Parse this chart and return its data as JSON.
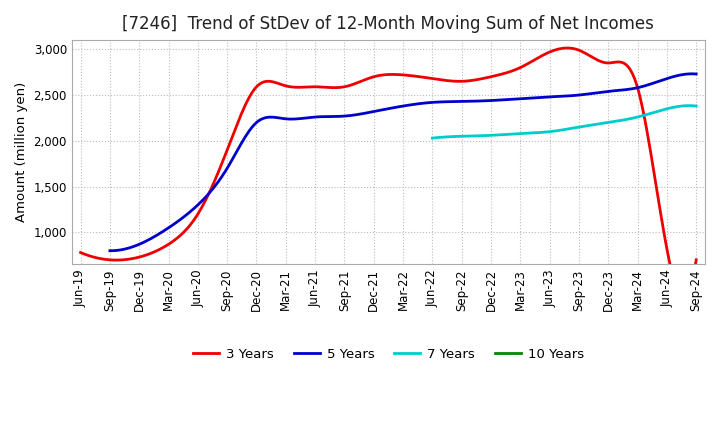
{
  "title": "[7246]  Trend of StDev of 12-Month Moving Sum of Net Incomes",
  "ylabel": "Amount (million yen)",
  "title_fontsize": 12,
  "label_fontsize": 9.5,
  "tick_fontsize": 8.5,
  "ylim": [
    650,
    3100
  ],
  "yticks": [
    1000,
    1500,
    2000,
    2500,
    3000
  ],
  "background_color": "#ffffff",
  "grid_color": "#bbbbbb",
  "x_labels": [
    "Jun-19",
    "Sep-19",
    "Dec-19",
    "Mar-20",
    "Jun-20",
    "Sep-20",
    "Dec-20",
    "Mar-21",
    "Jun-21",
    "Sep-21",
    "Dec-21",
    "Mar-22",
    "Jun-22",
    "Sep-22",
    "Dec-22",
    "Mar-23",
    "Jun-23",
    "Sep-23",
    "Dec-23",
    "Mar-24",
    "Jun-24",
    "Sep-24"
  ],
  "series": {
    "3 Years": {
      "color": "#ee0000",
      "values": [
        780,
        700,
        730,
        870,
        1200,
        1900,
        2590,
        2600,
        2590,
        2590,
        2700,
        2720,
        2680,
        2650,
        2700,
        2800,
        2970,
        2990,
        2850,
        2580,
        820,
        700
      ]
    },
    "5 Years": {
      "color": "#0000cc",
      "values": [
        null,
        800,
        870,
        1050,
        1300,
        1700,
        2200,
        2240,
        2260,
        2270,
        2320,
        2380,
        2420,
        2430,
        2440,
        2460,
        2480,
        2500,
        2540,
        2580,
        2680,
        2730
      ]
    },
    "7 Years": {
      "color": "#00cccc",
      "values": [
        null,
        null,
        null,
        null,
        null,
        null,
        null,
        null,
        null,
        null,
        null,
        null,
        2030,
        2050,
        2060,
        2080,
        2100,
        2150,
        2200,
        2260,
        2350,
        2380
      ]
    },
    "10 Years": {
      "color": "#008800",
      "values": [
        null,
        null,
        null,
        null,
        null,
        null,
        null,
        null,
        null,
        null,
        null,
        null,
        null,
        null,
        null,
        null,
        null,
        null,
        null,
        null,
        null,
        null
      ]
    }
  }
}
